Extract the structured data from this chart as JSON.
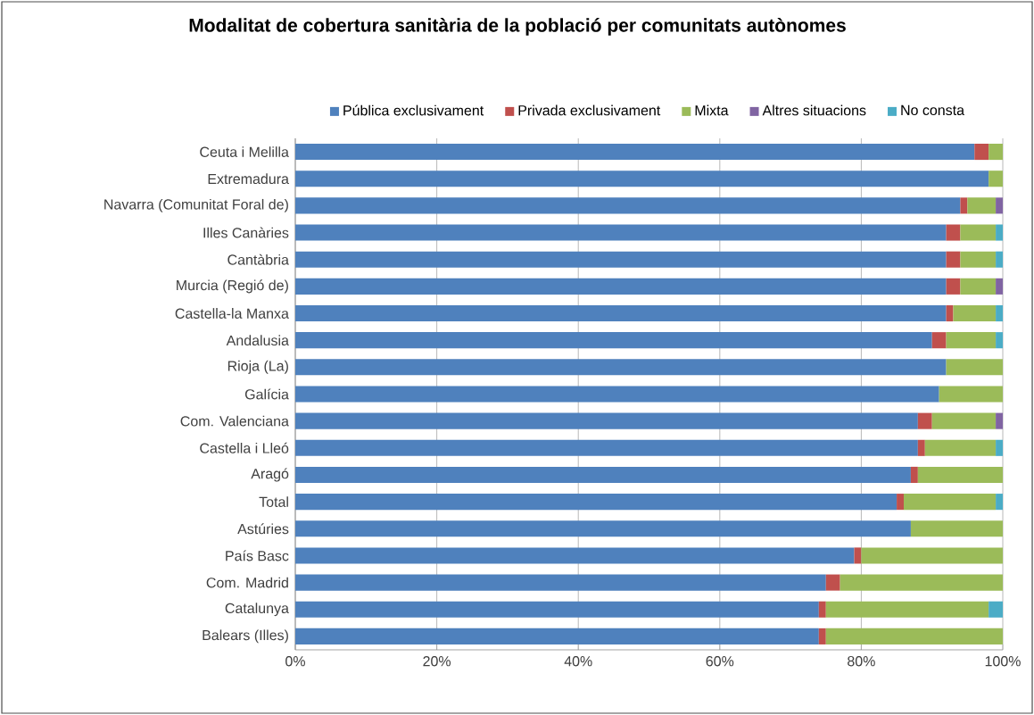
{
  "chart_data": {
    "type": "bar",
    "orientation": "horizontal",
    "stacked": true,
    "title": "Modalitat de cobertura sanitària de la població per comunitats autònomes",
    "categories": [
      "Ceuta i Melilla",
      "Extremadura",
      "Navarra (Comunitat Foral de)",
      "Illes Canàries",
      "Cantàbria",
      "Murcia (Regió de)",
      "Castella-la Manxa",
      "Andalusia",
      "Rioja (La)",
      "Galícia",
      "Com. Valenciana",
      "Castella i Lleó",
      "Aragó",
      "Total",
      "Astúries",
      "País Basc",
      "Com. Madrid",
      "Catalunya",
      "Balears (Illes)"
    ],
    "series": [
      {
        "name": "Pública exclusivament",
        "color": "#4f81bd",
        "values": [
          96,
          98,
          94,
          92,
          92,
          92,
          92,
          90,
          92,
          91,
          88,
          88,
          87,
          85,
          87,
          79,
          75,
          74,
          74
        ]
      },
      {
        "name": "Privada exclusivament",
        "color": "#c0504d",
        "values": [
          2,
          null,
          1,
          2,
          2,
          2,
          1,
          2,
          null,
          null,
          2,
          1,
          1,
          1,
          null,
          1,
          2,
          1,
          1
        ]
      },
      {
        "name": "Mixta",
        "color": "#9bbb59",
        "values": [
          2,
          2,
          4,
          5,
          5,
          5,
          6,
          7,
          8,
          9,
          9,
          10,
          12,
          13,
          13,
          20,
          23,
          23,
          25
        ]
      },
      {
        "name": "Altres situacions",
        "color": "#8064a2",
        "values": [
          null,
          null,
          1,
          null,
          null,
          1,
          null,
          null,
          null,
          null,
          1,
          null,
          null,
          null,
          null,
          null,
          null,
          null,
          null
        ]
      },
      {
        "name": "No consta",
        "color": "#4bacc6",
        "values": [
          null,
          null,
          null,
          1,
          1,
          null,
          1,
          1,
          null,
          null,
          null,
          1,
          null,
          1,
          null,
          null,
          null,
          2,
          null
        ]
      }
    ],
    "xlim": [
      0,
      100
    ],
    "xticks": [
      {
        "value": 0,
        "label": "0%"
      },
      {
        "value": 20,
        "label": "20%"
      },
      {
        "value": 40,
        "label": "40%"
      },
      {
        "value": 60,
        "label": "60%"
      },
      {
        "value": 80,
        "label": "80%"
      },
      {
        "value": 100,
        "label": "100%"
      }
    ],
    "grid": "x",
    "legend": "top"
  }
}
